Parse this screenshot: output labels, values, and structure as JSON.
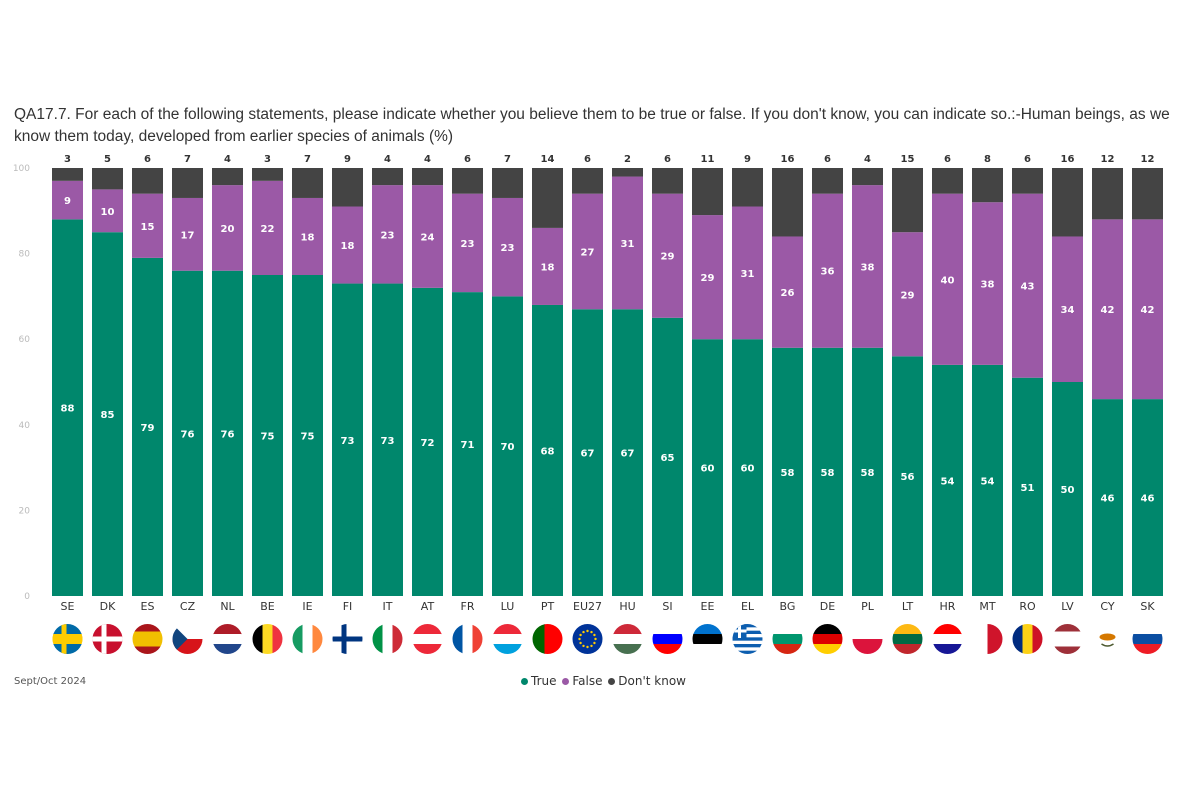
{
  "chart_data": {
    "type": "bar",
    "stacked": true,
    "title": "QA17.7. For each of the following statements, please indicate whether you believe them to be true or false. If you don't know, you can indicate so.:-Human beings, as we know them today, developed from earlier species of animals (%)",
    "categories": [
      "SE",
      "DK",
      "ES",
      "CZ",
      "NL",
      "BE",
      "IE",
      "FI",
      "IT",
      "AT",
      "FR",
      "LU",
      "PT",
      "EU27",
      "HU",
      "SI",
      "EE",
      "EL",
      "BG",
      "DE",
      "PL",
      "LT",
      "HR",
      "MT",
      "RO",
      "LV",
      "CY",
      "SK"
    ],
    "series": [
      {
        "name": "True",
        "color": "#00876c",
        "values": [
          88,
          85,
          79,
          76,
          76,
          75,
          75,
          73,
          73,
          72,
          71,
          70,
          68,
          67,
          67,
          65,
          60,
          60,
          58,
          58,
          58,
          56,
          54,
          54,
          51,
          50,
          46,
          46
        ]
      },
      {
        "name": "False",
        "color": "#9b59a6",
        "values": [
          9,
          10,
          15,
          17,
          20,
          22,
          18,
          18,
          23,
          24,
          23,
          23,
          18,
          27,
          31,
          29,
          29,
          31,
          26,
          36,
          38,
          29,
          40,
          38,
          43,
          34,
          42,
          42
        ]
      },
      {
        "name": "Don't know",
        "color": "#444444",
        "values": [
          3,
          5,
          6,
          7,
          4,
          3,
          7,
          9,
          4,
          4,
          6,
          7,
          14,
          6,
          2,
          6,
          11,
          9,
          16,
          6,
          4,
          15,
          6,
          8,
          6,
          16,
          12,
          12
        ]
      }
    ],
    "yticks": [
      0,
      20,
      40,
      60,
      80,
      100
    ],
    "ylim": [
      0,
      100
    ],
    "legend_position": "bottom-center",
    "grid": false
  },
  "footer": "Sept/Oct 2024",
  "legend": [
    "True",
    "False",
    "Don't know"
  ]
}
